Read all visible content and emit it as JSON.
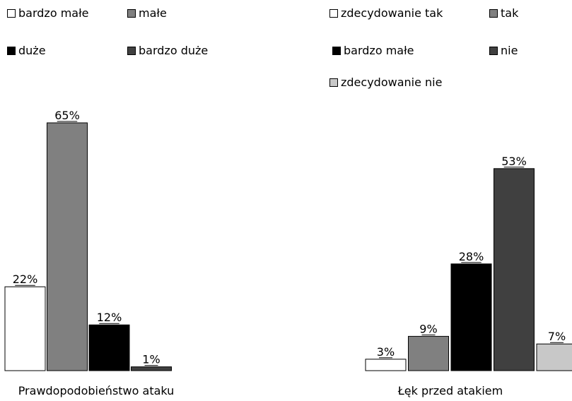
{
  "chart_data": [
    {
      "type": "bar",
      "xlabel": "Prawdopodobieństwo ataku",
      "categories": [
        "bardzo małe",
        "małe",
        "duże",
        "bardzo duże"
      ],
      "values": [
        22,
        65,
        12,
        1
      ],
      "data_labels": [
        "22%",
        "65%",
        "12%",
        "1%"
      ],
      "colors": [
        "#ffffff",
        "#808080",
        "#000000",
        "#404040"
      ],
      "legend": [
        {
          "label": "bardzo małe",
          "color": "#ffffff"
        },
        {
          "label": "małe",
          "color": "#808080"
        },
        {
          "label": "duże",
          "color": "#000000"
        },
        {
          "label": "bardzo duże",
          "color": "#404040"
        }
      ],
      "legend_position": "top",
      "ylim": [
        0,
        65
      ],
      "grid": false
    },
    {
      "type": "bar",
      "xlabel": "Łęk przed atakiem",
      "categories": [
        "zdecydowanie tak",
        "tak",
        "bardzo małe",
        "nie",
        "zdecydowanie nie"
      ],
      "values": [
        3,
        9,
        28,
        53,
        7
      ],
      "data_labels": [
        "3%",
        "9%",
        "28%",
        "53%",
        "7%"
      ],
      "colors": [
        "#ffffff",
        "#808080",
        "#000000",
        "#404040",
        "#c8c8c8"
      ],
      "legend": [
        {
          "label": "zdecydowanie tak",
          "color": "#ffffff"
        },
        {
          "label": "tak",
          "color": "#808080"
        },
        {
          "label": "bardzo małe",
          "color": "#000000"
        },
        {
          "label": "nie",
          "color": "#404040"
        },
        {
          "label": "zdecydowanie nie",
          "color": "#c8c8c8"
        }
      ],
      "legend_position": "top",
      "ylim": [
        0,
        65
      ],
      "grid": false
    }
  ]
}
